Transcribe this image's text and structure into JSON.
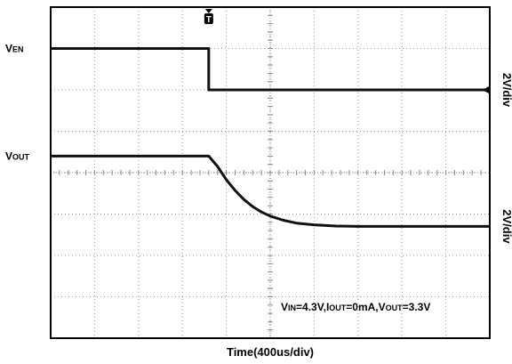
{
  "chart_data": {
    "type": "line",
    "xlabel": "Time(400us/div)",
    "divisions": {
      "x": 10,
      "y": 8
    },
    "grid": true,
    "conditions": {
      "parts": [
        {
          "main": "V",
          "sub": "IN"
        },
        {
          "main": "=4.3V,I",
          "sub": "OUT"
        },
        {
          "main": "=0mA,V",
          "sub": "OUT"
        },
        {
          "main": "=3.3V",
          "sub": ""
        }
      ]
    },
    "trigger": {
      "label": "T",
      "time_div": 3.6
    },
    "series": [
      {
        "name": "VEN",
        "label_main": "V",
        "label_sub": "EN",
        "scale": "2V/div",
        "marker": "1",
        "baseline_div": 6.0,
        "x_div": [
          0,
          3.6,
          3.6,
          10
        ],
        "y_div": [
          7.0,
          7.0,
          6.0,
          6.0
        ]
      },
      {
        "name": "VOUT",
        "label_main": "V",
        "label_sub": "OUT",
        "scale": "2V/div",
        "marker": "",
        "baseline_div": 2.7,
        "x_div": [
          0,
          3.6,
          3.8,
          4.0,
          4.2,
          4.4,
          4.6,
          4.8,
          5.0,
          5.3,
          5.6,
          6.0,
          6.5,
          7.0,
          10
        ],
        "y_div": [
          4.4,
          4.4,
          4.15,
          3.83,
          3.57,
          3.35,
          3.18,
          3.05,
          2.95,
          2.85,
          2.78,
          2.74,
          2.71,
          2.7,
          2.7
        ]
      }
    ]
  }
}
